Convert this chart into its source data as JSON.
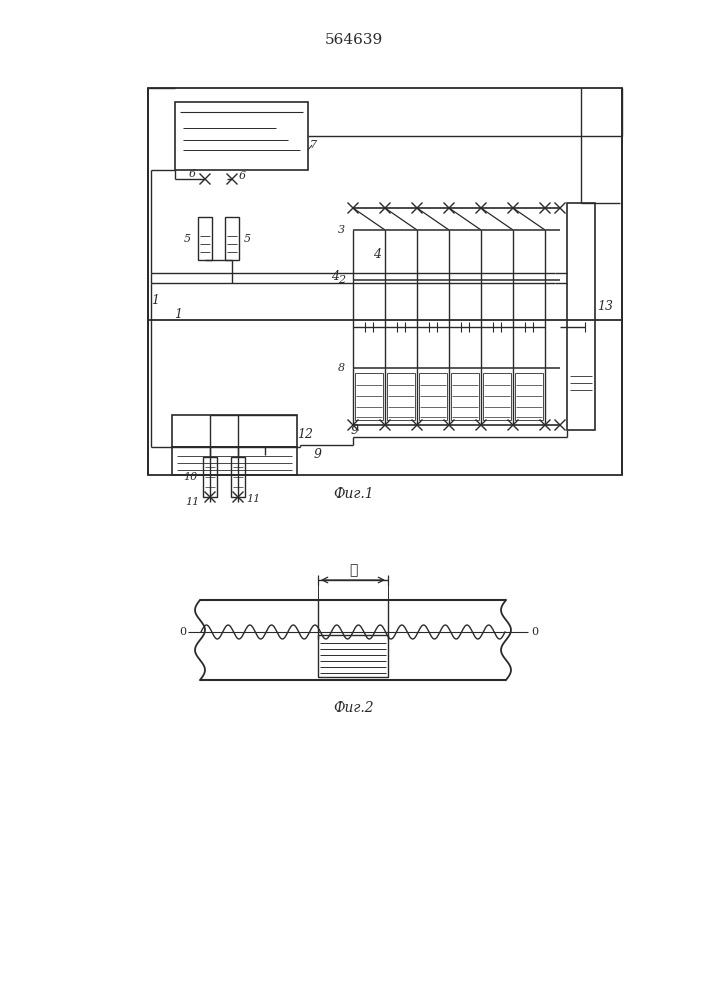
{
  "title": "564639",
  "bg_color": "#ffffff",
  "line_color": "#2a2a2a",
  "fig_width": 7.07,
  "fig_height": 10.0,
  "fig1_caption": "Τиг.1",
  "fig2_caption": "Τиг.2"
}
